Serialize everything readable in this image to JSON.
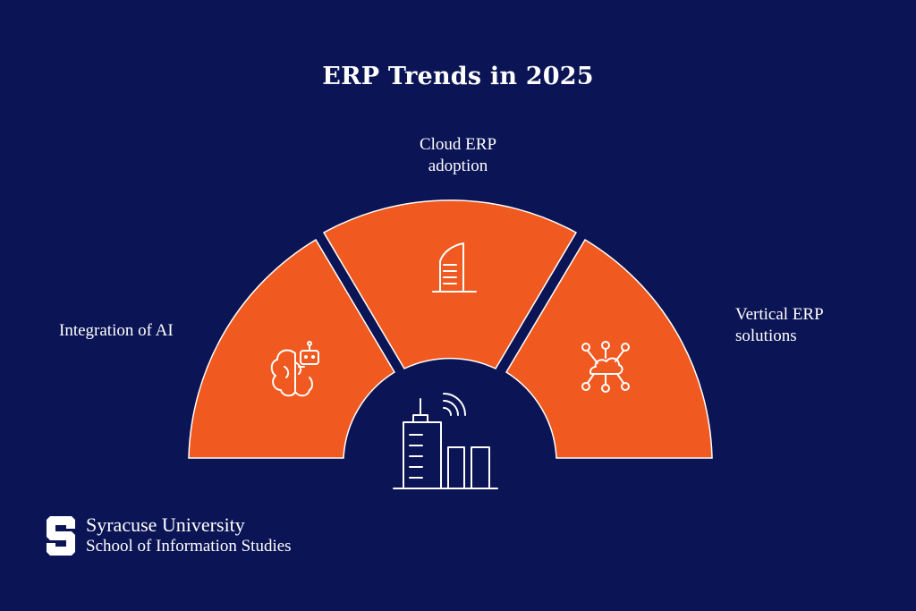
{
  "title": "ERP Trends in 2025",
  "segments": [
    {
      "label_lines": [
        "Integration of AI"
      ],
      "icon": "brain-robot-icon",
      "color": "#f0591f"
    },
    {
      "label_lines": [
        "Cloud ERP",
        "adoption"
      ],
      "icon": "building-tower-icon",
      "color": "#f0591f"
    },
    {
      "label_lines": [
        "Vertical ERP",
        "solutions"
      ],
      "icon": "cloud-network-icon",
      "color": "#f0591f"
    }
  ],
  "center_icon": "city-signal-icon",
  "logo": {
    "line1": "Syracuse University",
    "line2": "School of Information Studies",
    "mark": "block-s-logo"
  },
  "colors": {
    "background": "#0b1454",
    "segment": "#f0591f",
    "stroke": "#ffffff"
  }
}
